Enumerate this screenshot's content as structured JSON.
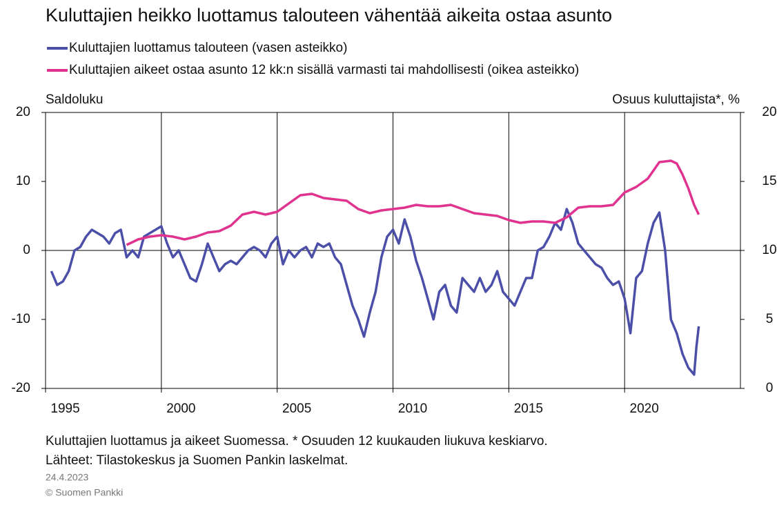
{
  "chart_data": {
    "type": "line",
    "title": "Kuluttajien heikko luottamus talouteen vähentää aikeita ostaa asunto",
    "ylabel": "Saldoluku",
    "y2label": "Osuus kuluttajista*, %",
    "notes": [
      "Kuluttajien luottamus ja aikeet Suomessa. * Osuuden 12 kuukauden liukuva keskiarvo.",
      "Lähteet: Tilastokeskus ja Suomen Pankin laskelmat."
    ],
    "date": "24.4.2023",
    "copyright": "© Suomen Pankki",
    "xlim": [
      1995,
      2025
    ],
    "xticks": [
      1995,
      2000,
      2005,
      2010,
      2015,
      2020
    ],
    "ylim": [
      -20,
      20
    ],
    "yticks": [
      -20,
      -10,
      0,
      10,
      20
    ],
    "y2lim": [
      0,
      20
    ],
    "y2ticks": [
      0,
      5,
      10,
      15,
      20
    ],
    "grid": true,
    "series": [
      {
        "name": "Kuluttajien luottamus talouteen (vasen asteikko)",
        "color": "#4b4fa8",
        "x": [
          1995.25,
          1995.5,
          1995.75,
          1996,
          1996.25,
          1996.5,
          1996.75,
          1997,
          1997.25,
          1997.5,
          1997.75,
          1998,
          1998.25,
          1998.5,
          1998.75,
          1999,
          1999.25,
          1999.5,
          1999.75,
          2000,
          2000.25,
          2000.5,
          2000.75,
          2001,
          2001.25,
          2001.5,
          2001.75,
          2002,
          2002.25,
          2002.5,
          2002.75,
          2003,
          2003.25,
          2003.5,
          2003.75,
          2004,
          2004.25,
          2004.5,
          2004.75,
          2005,
          2005.25,
          2005.5,
          2005.75,
          2006,
          2006.25,
          2006.5,
          2006.75,
          2007,
          2007.25,
          2007.5,
          2007.75,
          2008,
          2008.25,
          2008.5,
          2008.75,
          2009,
          2009.25,
          2009.5,
          2009.75,
          2010,
          2010.25,
          2010.5,
          2010.75,
          2011,
          2011.25,
          2011.5,
          2011.75,
          2012,
          2012.25,
          2012.5,
          2012.75,
          2013,
          2013.25,
          2013.5,
          2013.75,
          2014,
          2014.25,
          2014.5,
          2014.75,
          2015,
          2015.25,
          2015.5,
          2015.75,
          2016,
          2016.25,
          2016.5,
          2016.75,
          2017,
          2017.25,
          2017.5,
          2017.75,
          2018,
          2018.25,
          2018.5,
          2018.75,
          2019,
          2019.25,
          2019.5,
          2019.75,
          2020,
          2020.25,
          2020.5,
          2020.75,
          2021,
          2021.25,
          2021.5,
          2021.75,
          2022,
          2022.25,
          2022.5,
          2022.75,
          2023,
          2023.1,
          2023.2
        ],
        "values": [
          -3,
          -5,
          -4.5,
          -3,
          0,
          0.5,
          2,
          3,
          2.5,
          2,
          1,
          2.5,
          3,
          -1,
          0,
          -1,
          2,
          2.5,
          3,
          3.5,
          1,
          -1,
          0,
          -2,
          -4,
          -4.5,
          -2,
          1,
          -1,
          -3,
          -2,
          -1.5,
          -2,
          -1,
          0,
          0.5,
          0,
          -1,
          1,
          2,
          -2,
          0,
          -1,
          0,
          0.5,
          -1,
          1,
          0.5,
          1,
          -1,
          -2,
          -5,
          -8,
          -10,
          -12.5,
          -9,
          -6,
          -1,
          2,
          3,
          1,
          4.5,
          2,
          -1.5,
          -4,
          -7,
          -10,
          -6,
          -5,
          -8,
          -9,
          -4,
          -5,
          -6,
          -4,
          -6,
          -5,
          -3,
          -6,
          -7,
          -8,
          -6,
          -4,
          -4,
          0,
          0.5,
          2,
          4,
          3,
          6,
          4,
          1,
          0,
          -1,
          -2,
          -2.5,
          -4,
          -5,
          -4.5,
          -7,
          -12,
          -4,
          -3,
          1,
          4,
          5.5,
          0,
          -10,
          -12,
          -15,
          -17,
          -18,
          -14,
          -11
        ]
      },
      {
        "name": "Kuluttajien aikeet ostaa asunto 12 kk:n sisällä varmasti tai mahdollisesti (oikea asteikko)",
        "color": "#e0338f",
        "axis": "y2",
        "x": [
          1998.5,
          1999,
          1999.5,
          2000,
          2000.5,
          2001,
          2001.5,
          2002,
          2002.5,
          2003,
          2003.5,
          2004,
          2004.5,
          2005,
          2005.5,
          2006,
          2006.5,
          2007,
          2007.5,
          2008,
          2008.5,
          2009,
          2009.5,
          2010,
          2010.5,
          2011,
          2011.5,
          2012,
          2012.5,
          2013,
          2013.5,
          2014,
          2014.5,
          2015,
          2015.5,
          2016,
          2016.5,
          2017,
          2017.5,
          2018,
          2018.5,
          2019,
          2019.5,
          2020,
          2020.5,
          2021,
          2021.5,
          2022,
          2022.25,
          2022.5,
          2022.75,
          2023,
          2023.2
        ],
        "values": [
          10.4,
          10.8,
          11,
          11.1,
          11,
          10.8,
          11,
          11.3,
          11.4,
          11.8,
          12.6,
          12.8,
          12.6,
          12.8,
          13.4,
          14,
          14.1,
          13.8,
          13.7,
          13.6,
          13,
          12.7,
          12.9,
          13,
          13.1,
          13.3,
          13.2,
          13.2,
          13.3,
          13,
          12.7,
          12.6,
          12.5,
          12.2,
          12,
          12.1,
          12.1,
          12,
          12.4,
          13.1,
          13.2,
          13.2,
          13.3,
          14.2,
          14.6,
          15.2,
          16.4,
          16.5,
          16.3,
          15.5,
          14.5,
          13.3,
          12.6
        ]
      }
    ]
  }
}
